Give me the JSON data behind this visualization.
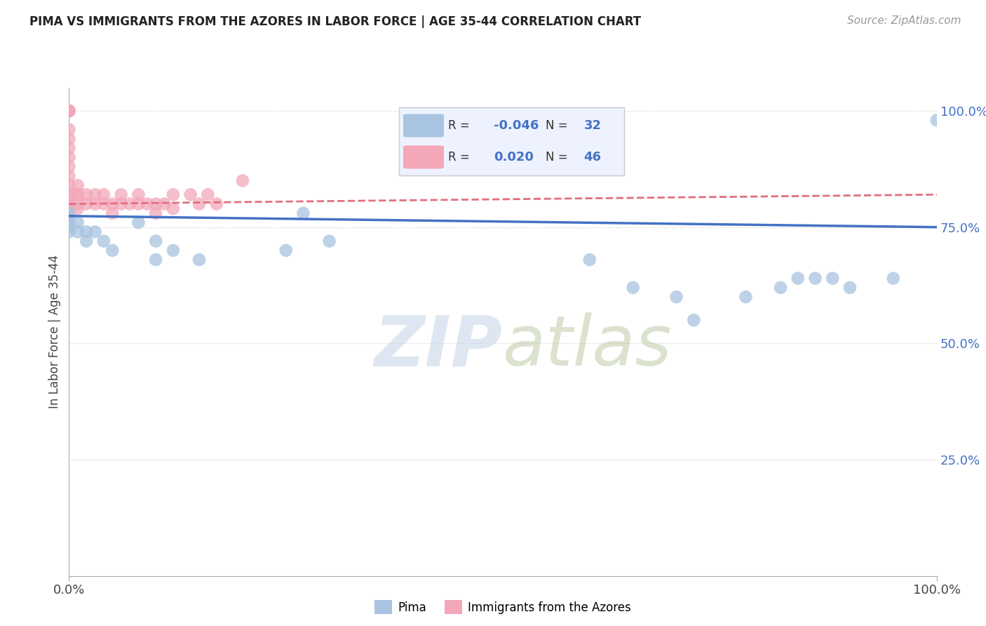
{
  "title": "PIMA VS IMMIGRANTS FROM THE AZORES IN LABOR FORCE | AGE 35-44 CORRELATION CHART",
  "source": "Source: ZipAtlas.com",
  "ylabel": "In Labor Force | Age 35-44",
  "xmin": 0.0,
  "xmax": 1.0,
  "ymin": 0.0,
  "ymax": 1.05,
  "x_tick_labels": [
    "0.0%",
    "100.0%"
  ],
  "y_tick_labels_right": [
    "100.0%",
    "75.0%",
    "50.0%",
    "25.0%"
  ],
  "y_tick_positions_right": [
    1.0,
    0.75,
    0.5,
    0.25
  ],
  "legend_labels": [
    "Pima",
    "Immigrants from the Azores"
  ],
  "pima_R": "-0.046",
  "pima_N": "32",
  "azores_R": "0.020",
  "azores_N": "46",
  "color_pima": "#a8c4e0",
  "color_azores": "#f4a7b9",
  "color_pima_line": "#4472c4",
  "color_azores_line": "#e07080",
  "color_text_blue": "#4472c4",
  "color_grid": "#cccccc",
  "watermark_color": "#c8d8e8",
  "pima_x": [
    0.0,
    0.0,
    0.0,
    0.0,
    0.0,
    0.01,
    0.01,
    0.02,
    0.02,
    0.03,
    0.04,
    0.05,
    0.08,
    0.1,
    0.1,
    0.12,
    0.15,
    0.25,
    0.27,
    0.3,
    0.6,
    0.65,
    0.7,
    0.72,
    0.78,
    0.82,
    0.84,
    0.86,
    0.88,
    0.9,
    0.95,
    1.0
  ],
  "pima_y": [
    0.78,
    0.77,
    0.76,
    0.75,
    0.74,
    0.76,
    0.74,
    0.74,
    0.72,
    0.74,
    0.72,
    0.7,
    0.76,
    0.68,
    0.72,
    0.7,
    0.68,
    0.7,
    0.78,
    0.72,
    0.68,
    0.62,
    0.6,
    0.55,
    0.6,
    0.62,
    0.64,
    0.64,
    0.64,
    0.62,
    0.64,
    0.98
  ],
  "azores_x": [
    0.0,
    0.0,
    0.0,
    0.0,
    0.0,
    0.0,
    0.0,
    0.0,
    0.0,
    0.0,
    0.0,
    0.0,
    0.0,
    0.0,
    0.0,
    0.0,
    0.0,
    0.01,
    0.01,
    0.01,
    0.01,
    0.01,
    0.02,
    0.02,
    0.03,
    0.03,
    0.04,
    0.04,
    0.05,
    0.05,
    0.06,
    0.06,
    0.07,
    0.08,
    0.08,
    0.09,
    0.1,
    0.1,
    0.11,
    0.12,
    0.12,
    0.14,
    0.15,
    0.16,
    0.17,
    0.2
  ],
  "azores_y": [
    1.0,
    1.0,
    1.0,
    1.0,
    1.0,
    0.96,
    0.94,
    0.92,
    0.9,
    0.88,
    0.86,
    0.84,
    0.82,
    0.81,
    0.8,
    0.79,
    0.78,
    0.84,
    0.82,
    0.82,
    0.8,
    0.79,
    0.82,
    0.8,
    0.82,
    0.8,
    0.82,
    0.8,
    0.8,
    0.78,
    0.82,
    0.8,
    0.8,
    0.82,
    0.8,
    0.8,
    0.8,
    0.78,
    0.8,
    0.82,
    0.79,
    0.82,
    0.8,
    0.82,
    0.8,
    0.85
  ],
  "pima_line_x": [
    0.0,
    1.0
  ],
  "pima_line_y": [
    0.774,
    0.75
  ],
  "azores_line_x": [
    0.0,
    1.0
  ],
  "azores_line_y": [
    0.8,
    0.82
  ]
}
